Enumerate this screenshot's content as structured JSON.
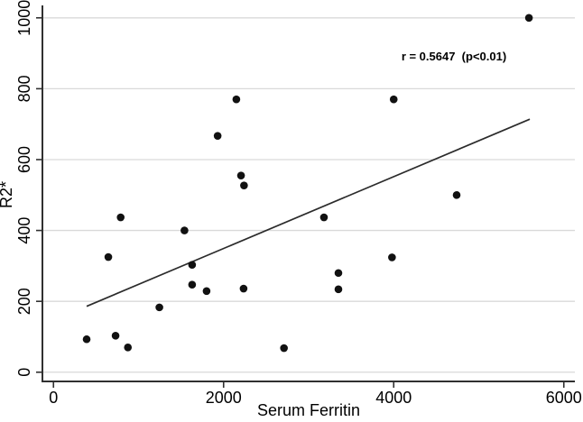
{
  "chart_data": {
    "type": "scatter",
    "title": "",
    "xlabel": "Serum Ferritin",
    "ylabel": "R2*",
    "annotation": "r = 0.5647  (p<0.01)",
    "xlim": [
      -130,
      6130
    ],
    "ylim": [
      -26,
      1030
    ],
    "xticks": [
      0,
      2000,
      4000,
      6000
    ],
    "yticks": [
      0,
      200,
      400,
      600,
      800,
      1000
    ],
    "grid": "horizontal-only",
    "legend": "none",
    "series": [
      {
        "name": "data-points",
        "marker": "filled-circle",
        "points": [
          [
            390,
            93
          ],
          [
            645,
            325
          ],
          [
            730,
            103
          ],
          [
            790,
            437
          ],
          [
            875,
            70
          ],
          [
            1245,
            183
          ],
          [
            1540,
            400
          ],
          [
            1630,
            247
          ],
          [
            1630,
            303
          ],
          [
            1800,
            229
          ],
          [
            1930,
            667
          ],
          [
            2150,
            770
          ],
          [
            2205,
            555
          ],
          [
            2235,
            236
          ],
          [
            2240,
            527
          ],
          [
            2710,
            68
          ],
          [
            3180,
            437
          ],
          [
            3350,
            234
          ],
          [
            3350,
            280
          ],
          [
            3980,
            324
          ],
          [
            4000,
            770
          ],
          [
            4740,
            500
          ],
          [
            5590,
            1000
          ]
        ]
      }
    ],
    "fit_line": {
      "x_start": 390,
      "y_start": 186,
      "x_end": 5600,
      "y_end": 714
    },
    "stats": {
      "r": "0.5647",
      "p": "p<0.01"
    },
    "colors": {
      "point": "#111111",
      "fit_line": "#2b2b2b",
      "grid": "#d9d9d9",
      "axis": "#303030",
      "text": "#000000",
      "background": "#ffffff"
    }
  }
}
